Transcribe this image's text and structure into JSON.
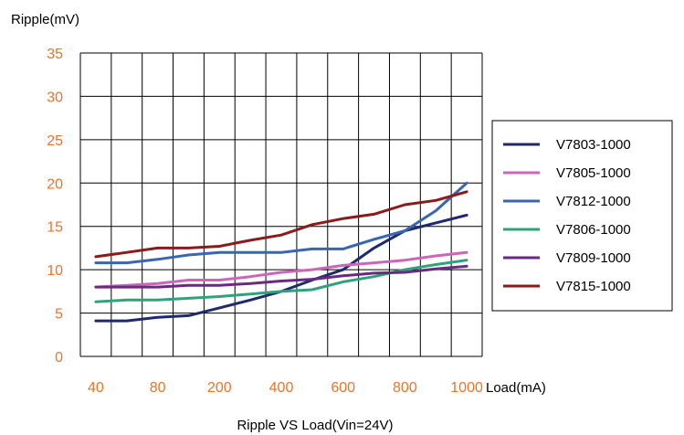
{
  "chart_data": {
    "type": "line",
    "title": "Ripple VS Load(Vin=24V)",
    "ylabel": "Ripple(mV)",
    "xlabel": "Load(mA)",
    "categories": [
      "40",
      "",
      "80",
      "",
      "200",
      "",
      "400",
      "",
      "600",
      "",
      "800",
      "",
      "1000"
    ],
    "ylim": [
      0,
      35
    ],
    "yticks": [
      0,
      5,
      10,
      15,
      20,
      25,
      30,
      35
    ],
    "grid": true,
    "legend_position": "right",
    "tick_color": "#e8742a",
    "series": [
      {
        "name": "V7803-1000",
        "color": "#1f2a6e",
        "values": [
          4.1,
          4.1,
          4.5,
          4.7,
          5.6,
          6.5,
          7.5,
          8.8,
          10.0,
          12.5,
          14.5,
          15.4,
          16.3
        ]
      },
      {
        "name": "V7805-1000",
        "color": "#cc66bb",
        "values": [
          8.0,
          8.2,
          8.4,
          8.8,
          8.8,
          9.2,
          9.7,
          10.0,
          10.5,
          10.8,
          11.1,
          11.6,
          12.0
        ]
      },
      {
        "name": "V7812-1000",
        "color": "#3a66b0",
        "values": [
          10.8,
          10.8,
          11.2,
          11.7,
          12.0,
          12.0,
          12.0,
          12.4,
          12.4,
          13.5,
          14.5,
          16.8,
          20.0
        ]
      },
      {
        "name": "V7806-1000",
        "color": "#2ea37a",
        "values": [
          6.3,
          6.5,
          6.5,
          6.7,
          6.9,
          7.2,
          7.5,
          7.7,
          8.6,
          9.2,
          10.0,
          10.6,
          11.1
        ]
      },
      {
        "name": "V7809-1000",
        "color": "#6a2a80",
        "values": [
          8.0,
          8.0,
          8.0,
          8.2,
          8.2,
          8.4,
          8.7,
          8.9,
          9.3,
          9.6,
          9.7,
          10.1,
          10.4
        ]
      },
      {
        "name": "V7815-1000",
        "color": "#8b1a1a",
        "values": [
          11.5,
          12.0,
          12.5,
          12.5,
          12.7,
          13.4,
          14.0,
          15.2,
          15.9,
          16.4,
          17.5,
          18.0,
          19.0
        ]
      }
    ]
  }
}
